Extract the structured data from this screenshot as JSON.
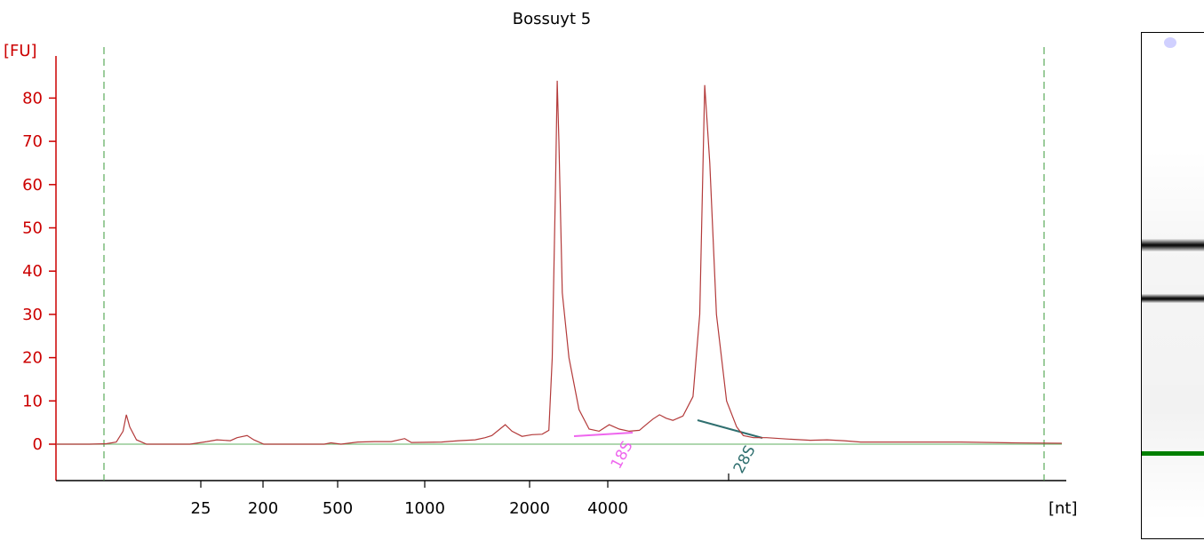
{
  "chart_data": {
    "type": "line",
    "title": "Bossuyt 5",
    "ylabel": "[FU]",
    "xlabel": "[nt]",
    "ylim": [
      -8,
      90
    ],
    "y_ticks": [
      0,
      10,
      20,
      30,
      40,
      50,
      60,
      70,
      80
    ],
    "x_tick_labels": [
      "25",
      "200",
      "500",
      "1000",
      "2000",
      "4000"
    ],
    "peak_labels": [
      "18S",
      "28S"
    ],
    "grid": false,
    "colors": {
      "trace": "#b33a3a",
      "axis": "#cc0000",
      "baseline": "#7fbf7f",
      "marker_lines": "#3a9a3a",
      "label_18S": "#ee66ee",
      "label_28S": "#2f6f6f",
      "lower_marker_band": "#008000"
    },
    "series": [
      {
        "values": [
          [
            0,
            0
          ],
          [
            10,
            0
          ],
          [
            15,
            0.1
          ],
          [
            18,
            0.5
          ],
          [
            20,
            3
          ],
          [
            21,
            6.8
          ],
          [
            22,
            4
          ],
          [
            24,
            1
          ],
          [
            27,
            0
          ],
          [
            40,
            0
          ],
          [
            45,
            0.6
          ],
          [
            48,
            1
          ],
          [
            52,
            0.8
          ],
          [
            54,
            1.5
          ],
          [
            57,
            2
          ],
          [
            59,
            1
          ],
          [
            62,
            0
          ],
          [
            80,
            0
          ],
          [
            82,
            0.3
          ],
          [
            85,
            0
          ],
          [
            90,
            0.5
          ],
          [
            95,
            0.6
          ],
          [
            100,
            0.6
          ],
          [
            104,
            1.3
          ],
          [
            106,
            0.4
          ],
          [
            115,
            0.5
          ],
          [
            120,
            0.8
          ],
          [
            125,
            1.0
          ],
          [
            128,
            1.5
          ],
          [
            130,
            2
          ],
          [
            134,
            4.5
          ],
          [
            136,
            3
          ],
          [
            139,
            1.8
          ],
          [
            142,
            2.2
          ],
          [
            145,
            2.3
          ],
          [
            147,
            3.2
          ],
          [
            148,
            20
          ],
          [
            149,
            60
          ],
          [
            149.5,
            84
          ],
          [
            150,
            70
          ],
          [
            151,
            35
          ],
          [
            153,
            20
          ],
          [
            156,
            8
          ],
          [
            159,
            3.5
          ],
          [
            162,
            3
          ],
          [
            165,
            4.5
          ],
          [
            168,
            3.5
          ],
          [
            171,
            3
          ],
          [
            174,
            3.2
          ],
          [
            176,
            4.5
          ],
          [
            178,
            5.8
          ],
          [
            180,
            6.8
          ],
          [
            182,
            6
          ],
          [
            184,
            5.5
          ],
          [
            187,
            6.5
          ],
          [
            190,
            11
          ],
          [
            192,
            30
          ],
          [
            193.5,
            83
          ],
          [
            195,
            65
          ],
          [
            197,
            30
          ],
          [
            200,
            10
          ],
          [
            203,
            4
          ],
          [
            205,
            2
          ],
          [
            208,
            1.5
          ],
          [
            212,
            1.5
          ],
          [
            218,
            1.2
          ],
          [
            225,
            0.9
          ],
          [
            230,
            1.0
          ],
          [
            235,
            0.8
          ],
          [
            240,
            0.5
          ],
          [
            250,
            0.5
          ],
          [
            270,
            0.5
          ],
          [
            285,
            0.3
          ],
          [
            300,
            0.2
          ]
        ]
      }
    ]
  }
}
